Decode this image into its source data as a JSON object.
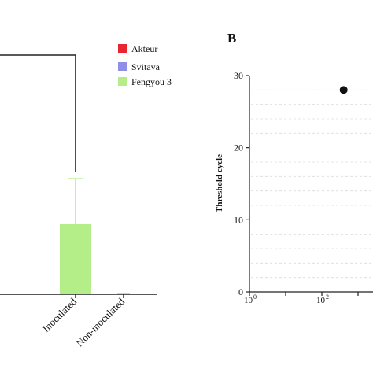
{
  "chart_data": [
    {
      "type": "bar",
      "categories": [
        "Inoculated",
        "Non-inoculated"
      ],
      "series": [
        {
          "name": "Akteur",
          "color": "#e8262f",
          "values": [
            null,
            null
          ]
        },
        {
          "name": "Svitava",
          "color": "#8f8fe8",
          "values": [
            null,
            null
          ]
        },
        {
          "name": "Fengyou 3",
          "color": "#b3ee88",
          "values": [
            1.0,
            0.0
          ],
          "error_upper": [
            0.65,
            0.0
          ]
        }
      ],
      "annotation": "significance bracket spanning groups"
    },
    {
      "type": "scatter",
      "panel_label": "B",
      "xscale": "log",
      "xlim": [
        1,
        1000
      ],
      "ylim": [
        0,
        30
      ],
      "ylabel": "Threshold cycle",
      "y_ticks": [
        "0",
        "10",
        "20",
        "30"
      ],
      "x_ticks": [
        "10",
        "10"
      ],
      "x_tick_exponents": [
        "0",
        "2"
      ],
      "points": [
        {
          "x": 400,
          "y": 28
        }
      ],
      "grid": true
    }
  ]
}
